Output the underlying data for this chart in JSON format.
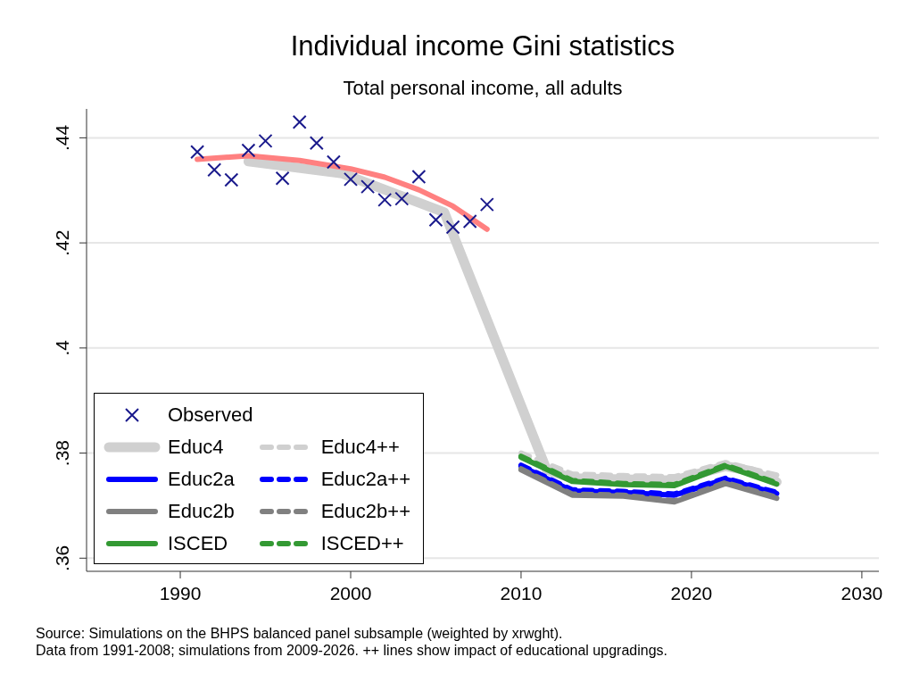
{
  "chart_data": {
    "type": "line",
    "title": "Individual income Gini statistics",
    "subtitle": "Total personal income, all adults",
    "xlim": [
      1984.5,
      2031
    ],
    "xticks": [
      1990,
      2000,
      2010,
      2020,
      2030
    ],
    "ylim": [
      0.3575,
      0.4455
    ],
    "yticks": [
      {
        "value": 0.36,
        "label": ".36"
      },
      {
        "value": 0.38,
        "label": ".38"
      },
      {
        "value": 0.4,
        "label": ".4"
      },
      {
        "value": 0.42,
        "label": ".42"
      },
      {
        "value": 0.44,
        "label": ".44"
      }
    ],
    "grid": "y",
    "legend": "bottom left",
    "series": [
      {
        "name": "Observed",
        "type": "scatter",
        "marker": "cross",
        "color": "#1a1a8c",
        "x": [
          1991,
          1992,
          1993,
          1994,
          1995,
          1996,
          1997,
          1998,
          1999,
          2000,
          2001,
          2002,
          2003,
          2004,
          2005,
          2006,
          2007,
          2008
        ],
        "values": [
          0.4373,
          0.4339,
          0.432,
          0.4376,
          0.4394,
          0.4323,
          0.443,
          0.439,
          0.4354,
          0.4321,
          0.4307,
          0.4282,
          0.4284,
          0.4326,
          0.4244,
          0.423,
          0.4241,
          0.4273
        ]
      },
      {
        "name": "Educ4",
        "line_style": "solid",
        "color": "#d0d0d0",
        "x": [
          1994,
          1999.5,
          2005.5,
          2011.5,
          2013,
          2016,
          2019,
          2022,
          2023.5,
          2025
        ],
        "values": [
          0.4355,
          0.4332,
          0.4258,
          0.3768,
          0.3752,
          0.375,
          0.3748,
          0.3775,
          0.3766,
          0.3745
        ]
      },
      {
        "name": "Educ4++",
        "line_style": "dashed",
        "color": "#d0d0d0",
        "x": [
          2010,
          2013,
          2016,
          2019,
          2022,
          2025
        ],
        "values": [
          0.38,
          0.376,
          0.3757,
          0.3755,
          0.3782,
          0.3758
        ]
      },
      {
        "name": "Educ2a",
        "line_style": "solid",
        "color": "#0000ff",
        "x": [
          2010,
          2013,
          2016,
          2019,
          2022,
          2025
        ],
        "values": [
          0.3775,
          0.3728,
          0.3725,
          0.372,
          0.375,
          0.3723
        ]
      },
      {
        "name": "Educ2a++",
        "line_style": "dashed",
        "color": "#0000ff",
        "x": [
          2010,
          2013,
          2016,
          2019,
          2022,
          2025
        ],
        "values": [
          0.3777,
          0.373,
          0.3727,
          0.3722,
          0.3752,
          0.3725
        ]
      },
      {
        "name": "Educ2b",
        "line_style": "solid",
        "color": "#808080",
        "x": [
          2010,
          2013,
          2016,
          2019,
          2022,
          2025
        ],
        "values": [
          0.3768,
          0.372,
          0.3718,
          0.3707,
          0.3742,
          0.3714
        ]
      },
      {
        "name": "Educ2b++",
        "line_style": "dashed",
        "color": "#808080",
        "x": [
          2010,
          2013,
          2016,
          2019,
          2022,
          2025
        ],
        "values": [
          0.377,
          0.3722,
          0.372,
          0.3709,
          0.3744,
          0.3716
        ]
      },
      {
        "name": "ISCED",
        "line_style": "solid",
        "color": "#339933",
        "x": [
          2010,
          2013,
          2016,
          2019,
          2022,
          2025
        ],
        "values": [
          0.3792,
          0.3746,
          0.374,
          0.3738,
          0.3775,
          0.3741
        ]
      },
      {
        "name": "ISCED++",
        "line_style": "dashed",
        "color": "#339933",
        "x": [
          2010,
          2013,
          2016,
          2019,
          2022,
          2025
        ],
        "values": [
          0.3794,
          0.3748,
          0.3742,
          0.374,
          0.3777,
          0.3743
        ]
      },
      {
        "line_style": "solid",
        "color": "#ff8080",
        "x": [
          1991,
          1994,
          1997,
          2000,
          2002,
          2004,
          2006,
          2008
        ],
        "values": [
          0.4359,
          0.4366,
          0.4357,
          0.4341,
          0.4325,
          0.4301,
          0.427,
          0.4226
        ]
      }
    ],
    "annotations": [
      "Source: Simulations on the BHPS balanced panel subsample (weighted by xrwght).",
      "Data from 1991-2008; simulations from 2009-2026. ++ lines show impact of educational upgradings."
    ]
  }
}
